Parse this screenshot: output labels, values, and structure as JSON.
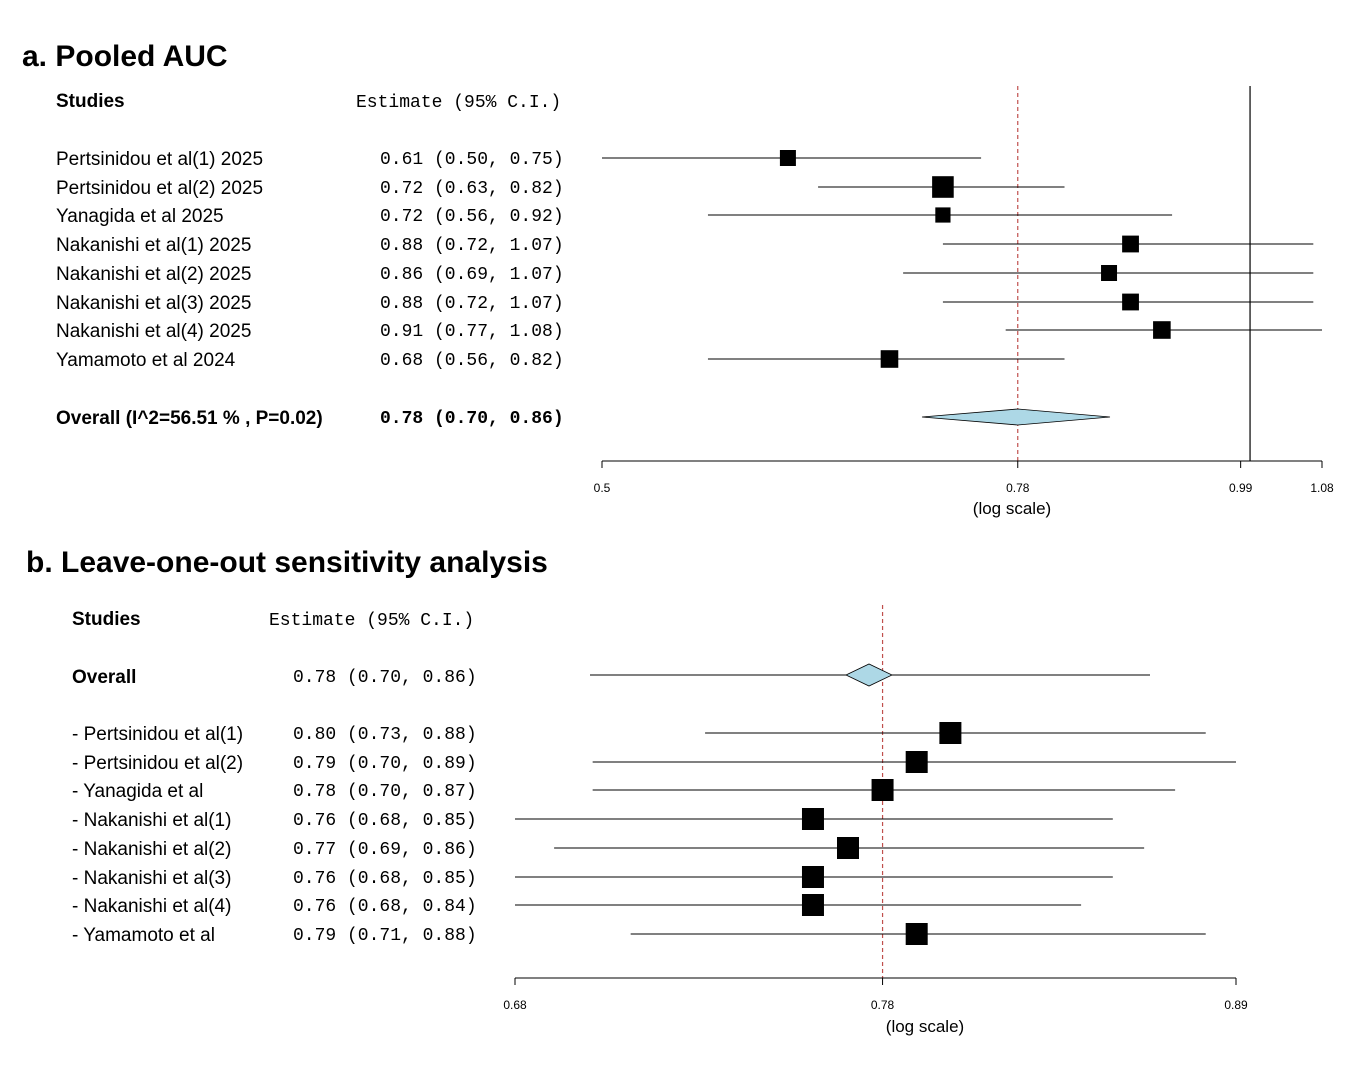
{
  "chart_data": [
    {
      "type": "forest",
      "title": "a. Pooled AUC",
      "columns": {
        "studies": "Studies",
        "estimate": "Estimate (95% C.I.)"
      },
      "xlabel": "(log scale)",
      "log_scale": true,
      "xlim": [
        0.5,
        1.08
      ],
      "xticks": [
        0.5,
        0.78,
        0.99,
        1.08
      ],
      "xtick_labels": [
        "0.5",
        "0.78",
        "0.99",
        "1.08"
      ],
      "null_line": 1.0,
      "reference_line": 0.78,
      "reference_color": "#c0504d",
      "diamond_color": "#add8e6",
      "studies": [
        {
          "label": "Pertsinidou et al(1) 2025",
          "est": 0.61,
          "lo": 0.5,
          "hi": 0.75,
          "ci_text": "0.61 (0.50, 0.75)",
          "weight": 1.0
        },
        {
          "label": "Pertsinidou et al(2) 2025",
          "est": 0.72,
          "lo": 0.63,
          "hi": 0.82,
          "ci_text": "0.72 (0.63, 0.82)",
          "weight": 1.35
        },
        {
          "label": "Yanagida et al 2025",
          "est": 0.72,
          "lo": 0.56,
          "hi": 0.92,
          "ci_text": "0.72 (0.56, 0.92)",
          "weight": 0.95
        },
        {
          "label": "Nakanishi et al(1) 2025",
          "est": 0.88,
          "lo": 0.72,
          "hi": 1.07,
          "ci_text": "0.88 (0.72, 1.07)",
          "weight": 1.05
        },
        {
          "label": "Nakanishi et al(2) 2025",
          "est": 0.86,
          "lo": 0.69,
          "hi": 1.07,
          "ci_text": "0.86 (0.69, 1.07)",
          "weight": 1.0
        },
        {
          "label": "Nakanishi et al(3) 2025",
          "est": 0.88,
          "lo": 0.72,
          "hi": 1.07,
          "ci_text": "0.88 (0.72, 1.07)",
          "weight": 1.05
        },
        {
          "label": "Nakanishi et al(4) 2025",
          "est": 0.91,
          "lo": 0.77,
          "hi": 1.08,
          "ci_text": "0.91 (0.77, 1.08)",
          "weight": 1.1
        },
        {
          "label": "Yamamoto et al 2024",
          "est": 0.68,
          "lo": 0.56,
          "hi": 0.82,
          "ci_text": "0.68 (0.56, 0.82)",
          "weight": 1.1
        }
      ],
      "overall": {
        "label": "Overall (I^2=56.51 % , P=0.02)",
        "est": 0.78,
        "lo": 0.7,
        "hi": 0.86,
        "ci_text": "0.78 (0.70, 0.86)"
      }
    },
    {
      "type": "forest",
      "title": "b. Leave-one-out sensitivity analysis",
      "columns": {
        "studies": "Studies",
        "estimate": "Estimate (95% C.I.)"
      },
      "xlabel": "(log scale)",
      "log_scale": true,
      "xlim": [
        0.68,
        0.89
      ],
      "xticks": [
        0.68,
        0.78,
        0.89
      ],
      "xtick_labels": [
        "0.68",
        "0.78",
        "0.89"
      ],
      "reference_line": 0.78,
      "reference_color": "#c0504d",
      "diamond_color": "#add8e6",
      "overall": {
        "label": "Overall",
        "est": 0.78,
        "lo": 0.7,
        "hi": 0.86,
        "ci_text": "0.78 (0.70, 0.86)"
      },
      "studies": [
        {
          "label": "- Pertsinidou et al(1)",
          "est": 0.8,
          "lo": 0.73,
          "hi": 0.88,
          "ci_text": "0.80 (0.73, 0.88)"
        },
        {
          "label": "- Pertsinidou et al(2)",
          "est": 0.79,
          "lo": 0.7,
          "hi": 0.89,
          "ci_text": "0.79 (0.70, 0.89)"
        },
        {
          "label": "- Yanagida et al",
          "est": 0.78,
          "lo": 0.7,
          "hi": 0.87,
          "ci_text": "0.78 (0.70, 0.87)"
        },
        {
          "label": "- Nakanishi et al(1)",
          "est": 0.76,
          "lo": 0.68,
          "hi": 0.85,
          "ci_text": "0.76 (0.68, 0.85)"
        },
        {
          "label": "- Nakanishi et al(2)",
          "est": 0.77,
          "lo": 0.69,
          "hi": 0.86,
          "ci_text": "0.77 (0.69, 0.86)"
        },
        {
          "label": "- Nakanishi et al(3)",
          "est": 0.76,
          "lo": 0.68,
          "hi": 0.85,
          "ci_text": "0.76 (0.68, 0.85)"
        },
        {
          "label": "- Nakanishi et al(4)",
          "est": 0.76,
          "lo": 0.68,
          "hi": 0.84,
          "ci_text": "0.76 (0.68, 0.84)"
        },
        {
          "label": "- Yamamoto et al",
          "est": 0.79,
          "lo": 0.71,
          "hi": 0.88,
          "ci_text": "0.79 (0.71, 0.88)"
        }
      ]
    }
  ]
}
